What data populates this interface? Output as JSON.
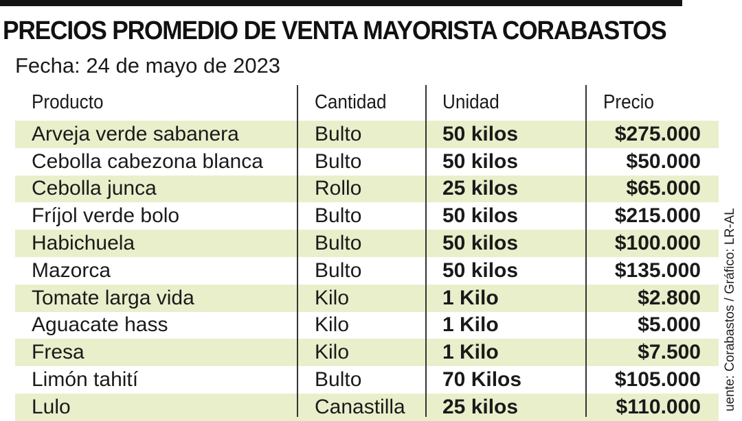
{
  "title": "PRECIOS PROMEDIO DE VENTA MAYORISTA CORABASTOS",
  "subtitle": "Fecha: 24 de mayo de 2023",
  "source": "uente: Corabastos / Gráfico: LR-AL",
  "colors": {
    "row_shade": "#e9efcb",
    "top_bar": "#141414"
  },
  "chart_data": {
    "type": "table",
    "title": "PRECIOS PROMEDIO DE VENTA MAYORISTA CORABASTOS",
    "subtitle": "Fecha: 24 de mayo de 2023",
    "columns": [
      "Producto",
      "Cantidad",
      "Unidad",
      "Precio"
    ],
    "rows": [
      [
        "Arveja verde sabanera",
        "Bulto",
        "50 kilos",
        "$275.000"
      ],
      [
        "Cebolla cabezona blanca",
        "Bulto",
        "50 kilos",
        "$50.000"
      ],
      [
        "Cebolla junca",
        "Rollo",
        "25 kilos",
        "$65.000"
      ],
      [
        "Fríjol verde bolo",
        "Bulto",
        "50 kilos",
        "$215.000"
      ],
      [
        "Habichuela",
        "Bulto",
        "50 kilos",
        "$100.000"
      ],
      [
        "Mazorca",
        "Bulto",
        "50 kilos",
        "$135.000"
      ],
      [
        "Tomate larga vida",
        "Kilo",
        "1 Kilo",
        "$2.800"
      ],
      [
        "Aguacate hass",
        "Kilo",
        "1 Kilo",
        "$5.000"
      ],
      [
        "Fresa",
        "Kilo",
        "1 Kilo",
        "$7.500"
      ],
      [
        "Limón tahití",
        "Bulto",
        "70 Kilos",
        "$105.000"
      ],
      [
        "Lulo",
        "Canastilla",
        "25 kilos",
        "$110.000"
      ]
    ]
  }
}
